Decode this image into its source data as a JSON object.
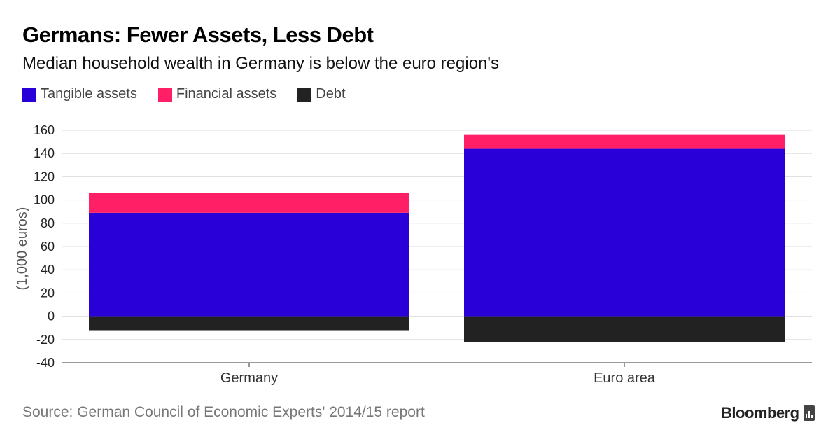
{
  "header": {
    "title": "Germans: Fewer Assets, Less Debt",
    "subtitle": "Median household wealth in Germany is below the euro region's"
  },
  "legend": [
    {
      "label": "Tangible assets",
      "color": "#2a00d9"
    },
    {
      "label": "Financial assets",
      "color": "#ff1f66"
    },
    {
      "label": "Debt",
      "color": "#222222"
    }
  ],
  "footer": {
    "source": "Source: German Council of Economic Experts' 2014/15 report",
    "brand": "Bloomberg"
  },
  "chart_data": {
    "type": "bar",
    "stacked": true,
    "categories": [
      "Germany",
      "Euro area"
    ],
    "series": [
      {
        "name": "Tangible assets",
        "values": [
          89,
          144
        ],
        "color": "#2a00d9"
      },
      {
        "name": "Financial assets",
        "values": [
          17,
          12
        ],
        "color": "#ff1f66"
      },
      {
        "name": "Debt",
        "values": [
          -12,
          -22
        ],
        "color": "#222222"
      }
    ],
    "ylabel": "(1,000 euros)",
    "xlabel": "",
    "ylim": [
      -40,
      160
    ],
    "yticks": [
      160,
      140,
      120,
      100,
      80,
      60,
      40,
      20,
      0,
      -20,
      -40
    ],
    "grid": true,
    "legend_position": "top-left"
  }
}
